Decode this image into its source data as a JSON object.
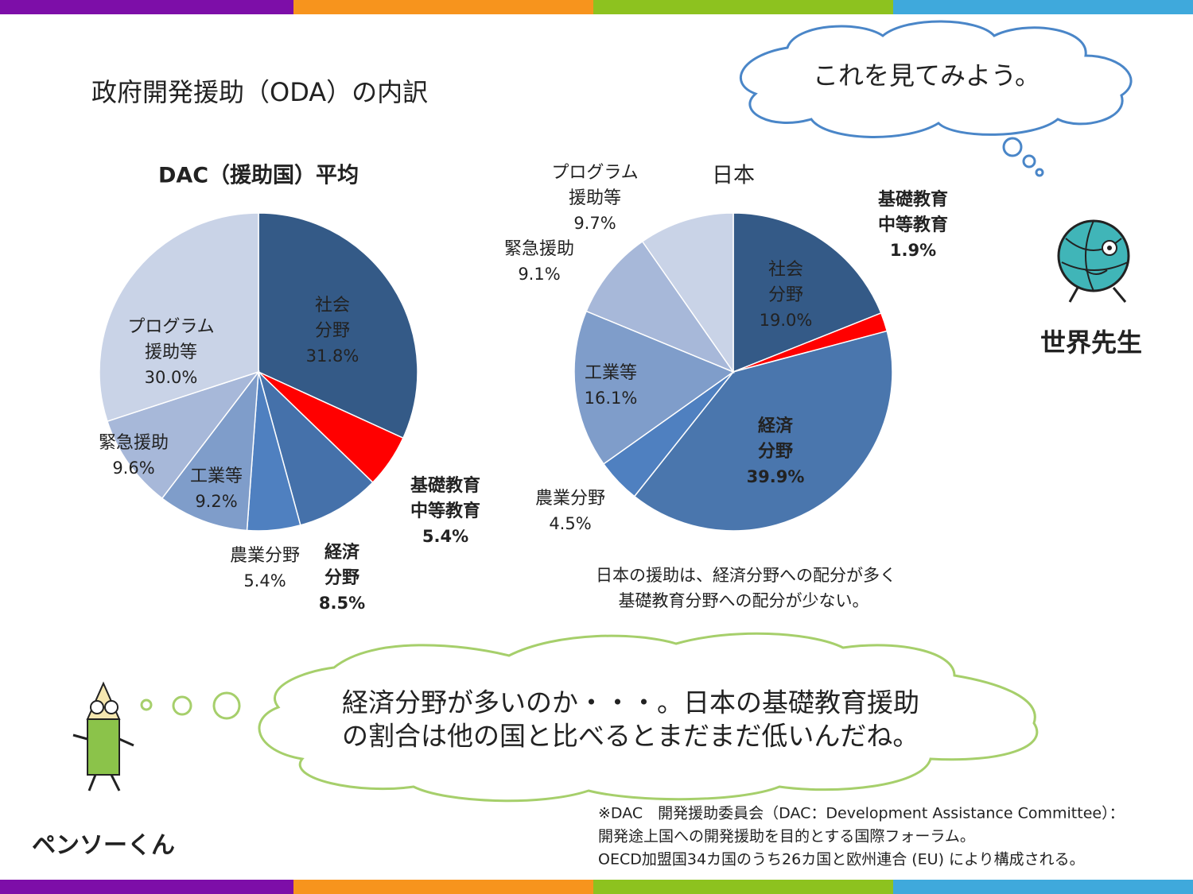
{
  "slide_title": "政府開発援助（ODA）の内訳",
  "teacher_bubble": "これを見てみよう。",
  "teacher_name": "世界先生",
  "note_lines": [
    "日本の援助は、経済分野への配分が多く",
    "基礎教育分野への配分が少ない。"
  ],
  "student_bubble_lines": [
    "経済分野が多いのか・・・。日本の基礎教育援助",
    "の割合は他の国と比べるとまだまだ低いんだね。"
  ],
  "student_name": "ペンソーくん",
  "footnote_lines": [
    "※DAC　開発援助委員会（DAC：Development Assistance Committee）：",
    "開発途上国への開発援助を目的とする国際フォーラム。",
    "OECD加盟国34カ国のうち26カ国と欧州連合 (EU) により構成される。"
  ],
  "chart_data": [
    {
      "type": "pie",
      "title": "DAC（援助国）平均",
      "categories": [
        "社会\n分野",
        "基礎教育\n中等教育",
        "経済\n分野",
        "農業分野",
        "工業等",
        "緊急援助",
        "プログラム\n援助等"
      ],
      "values": [
        31.8,
        5.4,
        8.5,
        5.4,
        9.2,
        9.6,
        30.0
      ],
      "value_labels": [
        "31.8%",
        "5.4%",
        "8.5%",
        "5.4%",
        "9.2%",
        "9.6%",
        "30.0%"
      ],
      "colors": [
        "#345a87",
        "#ff0000",
        "#4571aa",
        "#4f80c0",
        "#7f9dca",
        "#a7b8d9",
        "#c9d3e7"
      ]
    },
    {
      "type": "pie",
      "title": "日本",
      "categories": [
        "社会\n分野",
        "基礎教育\n中等教育",
        "経済\n分野",
        "農業分野",
        "工業等",
        "緊急援助",
        "プログラム\n援助等"
      ],
      "values": [
        19.0,
        1.9,
        39.9,
        4.5,
        16.1,
        9.1,
        9.7
      ],
      "value_labels": [
        "19.0%",
        "1.9%",
        "39.9%",
        "4.5%",
        "16.1%",
        "9.1%",
        "9.7%"
      ],
      "colors": [
        "#345a87",
        "#ff0000",
        "#4a76ad",
        "#4f80c0",
        "#7f9dca",
        "#a7b8d9",
        "#c9d3e7"
      ]
    }
  ]
}
